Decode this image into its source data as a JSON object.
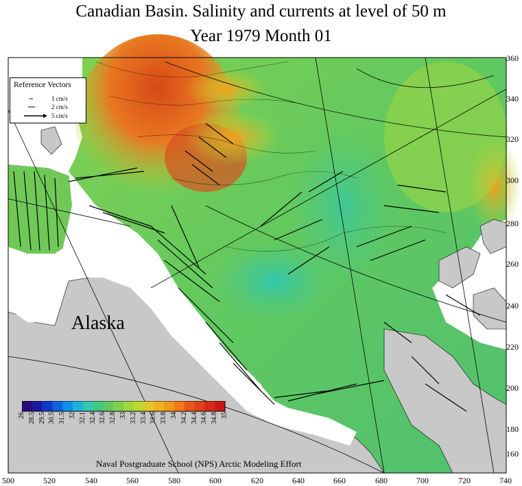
{
  "title_line1": "Canadian Basin. Salinity and currents at level of 50 m",
  "title_line2": "Year 1979   Month  01",
  "region_label": "Alaska",
  "credit": "Naval Postgraduate School (NPS) Arctic Modeling Effort",
  "reference_vectors": {
    "title": "Reference Vectors",
    "items": [
      "1 cm/s",
      "2 cm/s",
      "5 cm/s"
    ]
  },
  "x_axis_ticks": [
    "500",
    "520",
    "540",
    "560",
    "580",
    "600",
    "620",
    "640",
    "660",
    "680",
    "700",
    "720",
    "740"
  ],
  "y_axis_ticks": [
    "360",
    "340",
    "320",
    "300",
    "280",
    "260",
    "240",
    "220",
    "200",
    "180",
    "160"
  ],
  "colorbar": {
    "labels": [
      "26",
      "28.5",
      "29.5",
      "30.5",
      "31.5",
      "32",
      "32.1",
      "32.4",
      "32.6",
      "32.8",
      "33",
      "33.2",
      "33.4",
      "33.6",
      "33.8",
      "34",
      "34.2",
      "34.4",
      "34.6",
      "34.8",
      "35"
    ],
    "colors": [
      "#2a0a7a",
      "#1a1aa0",
      "#1038c8",
      "#1060e0",
      "#1090e8",
      "#20b0e0",
      "#30c8b0",
      "#40c880",
      "#60c860",
      "#80d050",
      "#a0d840",
      "#c0d830",
      "#e0c828",
      "#f0b020",
      "#f09818",
      "#f07818",
      "#e85818",
      "#e04018",
      "#d82818",
      "#c81818"
    ]
  },
  "colors": {
    "land": "#c8c8c8",
    "ice_white": "#ffffff",
    "salinity_high": "#e05818",
    "salinity_mid": "#60c860",
    "salinity_low": "#30c8a0"
  }
}
